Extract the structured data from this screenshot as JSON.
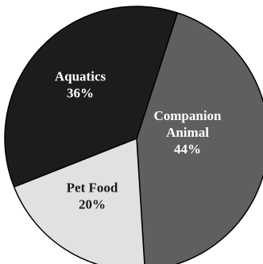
{
  "chart_data": {
    "type": "pie",
    "slices": [
      {
        "name": "Companion Animal",
        "label_lines": [
          "Companion",
          "Animal"
        ],
        "value": 44,
        "value_label": "44%",
        "color": "#5f5f5f",
        "text_color": "#ffffff"
      },
      {
        "name": "Pet Food",
        "label_lines": [
          "Pet Food"
        ],
        "value": 20,
        "value_label": "20%",
        "color": "#e1e1e1",
        "text_color": "#1a1a1a"
      },
      {
        "name": "Aquatics",
        "label_lines": [
          "Aquatics"
        ],
        "value": 36,
        "value_label": "36%",
        "color": "#1c1c1c",
        "text_color": "#ffffff"
      }
    ],
    "start_angle_deg": 18,
    "direction": "clockwise",
    "outline_color": "#000000"
  }
}
